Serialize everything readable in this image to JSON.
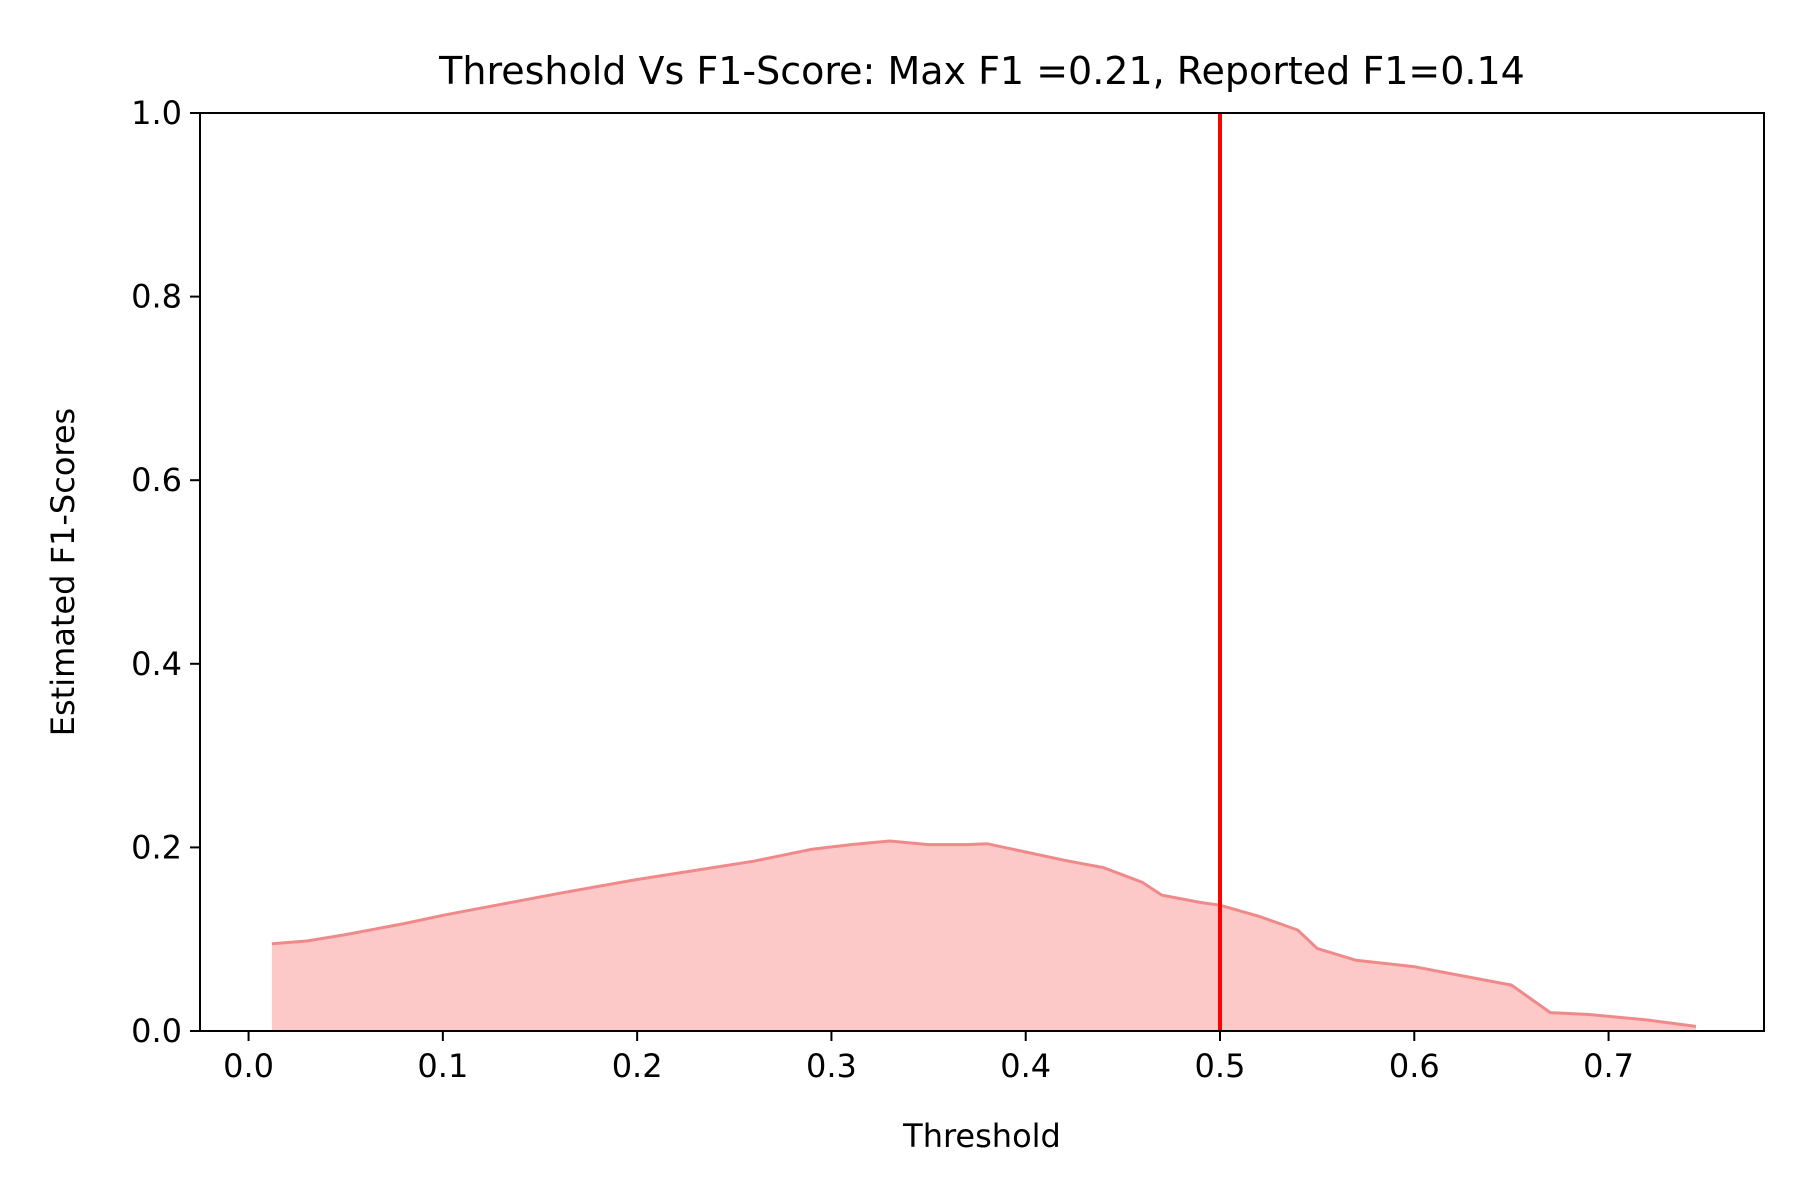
{
  "chart_data": {
    "type": "area",
    "title": "Threshold Vs F1-Score: Max F1 =0.21, Reported F1=0.14",
    "xlabel": "Threshold",
    "ylabel": "Estimated F1-Scores",
    "xlim": [
      -0.025,
      0.78
    ],
    "ylim": [
      0.0,
      1.0
    ],
    "x_ticks": [
      "0.0",
      "0.1",
      "0.2",
      "0.3",
      "0.4",
      "0.5",
      "0.6",
      "0.7"
    ],
    "x_tick_values": [
      0.0,
      0.1,
      0.2,
      0.3,
      0.4,
      0.5,
      0.6,
      0.7
    ],
    "y_ticks": [
      "0.0",
      "0.2",
      "0.4",
      "0.6",
      "0.8",
      "1.0"
    ],
    "y_tick_values": [
      0.0,
      0.2,
      0.4,
      0.6,
      0.8,
      1.0
    ],
    "grid": false,
    "series": [
      {
        "x": [
          0.012,
          0.03,
          0.05,
          0.08,
          0.1,
          0.13,
          0.16,
          0.2,
          0.23,
          0.26,
          0.29,
          0.31,
          0.33,
          0.35,
          0.37,
          0.38,
          0.4,
          0.42,
          0.44,
          0.46,
          0.47,
          0.49,
          0.5,
          0.52,
          0.54,
          0.55,
          0.57,
          0.6,
          0.62,
          0.65,
          0.67,
          0.69,
          0.72,
          0.745
        ],
        "y": [
          0.095,
          0.098,
          0.105,
          0.117,
          0.126,
          0.138,
          0.15,
          0.165,
          0.175,
          0.185,
          0.198,
          0.203,
          0.207,
          0.203,
          0.203,
          0.204,
          0.195,
          0.186,
          0.178,
          0.162,
          0.148,
          0.14,
          0.137,
          0.125,
          0.11,
          0.09,
          0.077,
          0.07,
          0.062,
          0.05,
          0.02,
          0.018,
          0.012,
          0.005
        ],
        "fill_color": "#fcc8c8",
        "line_color": "#f08a8a"
      }
    ],
    "vline": {
      "x": 0.5,
      "color": "#ff0000"
    }
  }
}
